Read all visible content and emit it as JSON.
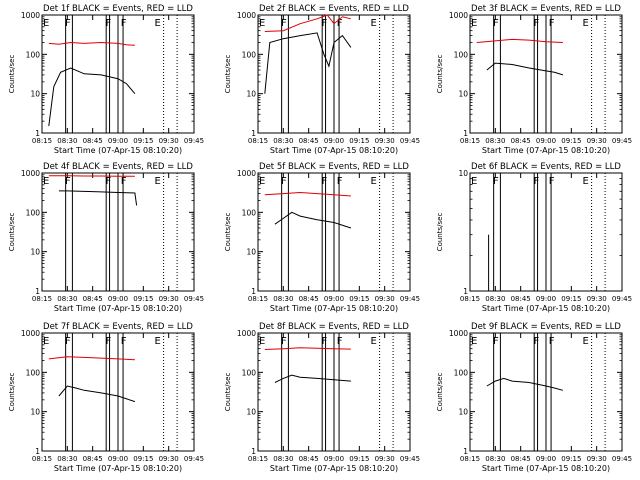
{
  "common": {
    "x_ticks": [
      "08:15",
      "08:30",
      "08:45",
      "09:00",
      "09:15",
      "09:30",
      "09:45"
    ],
    "xlabel": "Start Time (07-Apr-15 08:10:20)",
    "ylabel": "Counts/sec",
    "flare_markers": [
      {
        "label": "E",
        "time": "08:15"
      },
      {
        "label": "F",
        "time": "08:28"
      },
      {
        "label": "F",
        "time": "08:52"
      },
      {
        "label": "F",
        "time": "09:01"
      },
      {
        "label": "E",
        "time": "09:21"
      }
    ],
    "solid_vlines": [
      "08:29",
      "08:33",
      "08:53",
      "08:55",
      "09:00",
      "09:03"
    ],
    "dotted_vlines": [
      "09:27",
      "09:35"
    ],
    "colors": {
      "events": "#000000",
      "lld": "#e00000"
    }
  },
  "chart_data": [
    {
      "type": "line",
      "title": "Det 1f BLACK = Events, RED = LLD",
      "yscale": "log",
      "y_ticks": [
        "1",
        "10",
        "100",
        "1000"
      ],
      "ylim": [
        1,
        1000
      ],
      "series": [
        {
          "name": "LLD",
          "color": "#e00000",
          "x": [
            "08:19",
            "08:25",
            "08:32",
            "08:40",
            "08:50",
            "09:00",
            "09:05",
            "09:10"
          ],
          "values": [
            190,
            180,
            200,
            190,
            200,
            190,
            175,
            170
          ]
        },
        {
          "name": "Events",
          "color": "#000000",
          "x": [
            "08:19",
            "08:22",
            "08:26",
            "08:32",
            "08:40",
            "08:50",
            "09:00",
            "09:05",
            "09:10"
          ],
          "values": [
            1.5,
            15,
            35,
            45,
            32,
            30,
            24,
            18,
            10
          ]
        }
      ]
    },
    {
      "type": "line",
      "title": "Det 2f BLACK = Events, RED = LLD",
      "yscale": "log",
      "y_ticks": [
        "1",
        "10",
        "100",
        "1000"
      ],
      "ylim": [
        1,
        1000
      ],
      "series": [
        {
          "name": "LLD",
          "color": "#e00000",
          "x": [
            "08:19",
            "08:30",
            "08:40",
            "08:50",
            "08:56",
            "09:00",
            "09:05",
            "09:10"
          ],
          "values": [
            380,
            400,
            600,
            800,
            1000,
            600,
            900,
            800
          ]
        },
        {
          "name": "Events",
          "color": "#000000",
          "x": [
            "08:19",
            "08:22",
            "08:30",
            "08:40",
            "08:50",
            "08:54",
            "08:57",
            "09:00",
            "09:05",
            "09:10"
          ],
          "values": [
            10,
            200,
            250,
            300,
            350,
            100,
            50,
            200,
            300,
            150
          ]
        }
      ]
    },
    {
      "type": "line",
      "title": "Det 3f BLACK = Events, RED = LLD",
      "yscale": "log",
      "y_ticks": [
        "1",
        "10",
        "100",
        "1000"
      ],
      "ylim": [
        1,
        1000
      ],
      "series": [
        {
          "name": "LLD",
          "color": "#e00000",
          "x": [
            "08:19",
            "08:30",
            "08:40",
            "08:50",
            "09:00",
            "09:10"
          ],
          "values": [
            200,
            220,
            240,
            230,
            210,
            200
          ]
        },
        {
          "name": "Events",
          "color": "#000000",
          "x": [
            "08:25",
            "08:30",
            "08:40",
            "08:50",
            "09:00",
            "09:05",
            "09:10"
          ],
          "values": [
            40,
            60,
            55,
            45,
            38,
            35,
            30
          ]
        }
      ]
    },
    {
      "type": "line",
      "title": "Det 4f BLACK = Events, RED = LLD",
      "yscale": "log",
      "y_ticks": [
        "1",
        "10",
        "100",
        "1000"
      ],
      "ylim": [
        1,
        1000
      ],
      "series": [
        {
          "name": "LLD",
          "color": "#e00000",
          "x": [
            "08:19",
            "08:30",
            "08:40",
            "08:50",
            "09:00",
            "09:10"
          ],
          "values": [
            850,
            850,
            840,
            840,
            830,
            830
          ]
        },
        {
          "name": "Events",
          "color": "#000000",
          "x": [
            "08:25",
            "08:30",
            "08:40",
            "08:50",
            "09:00",
            "09:10",
            "09:11"
          ],
          "values": [
            350,
            350,
            340,
            330,
            320,
            310,
            150
          ]
        }
      ]
    },
    {
      "type": "line",
      "title": "Det 5f BLACK = Events, RED = LLD",
      "yscale": "log",
      "y_ticks": [
        "1",
        "10",
        "100",
        "1000"
      ],
      "ylim": [
        1,
        1000
      ],
      "series": [
        {
          "name": "LLD",
          "color": "#e00000",
          "x": [
            "08:19",
            "08:30",
            "08:40",
            "08:50",
            "09:00",
            "09:10"
          ],
          "values": [
            280,
            300,
            320,
            300,
            280,
            260
          ]
        },
        {
          "name": "Events",
          "color": "#000000",
          "x": [
            "08:25",
            "08:30",
            "08:35",
            "08:40",
            "08:50",
            "09:00",
            "09:10"
          ],
          "values": [
            50,
            70,
            100,
            80,
            65,
            55,
            40
          ]
        }
      ]
    },
    {
      "type": "line",
      "title": "Det 6f BLACK = Events, RED = LLD",
      "yscale": "log",
      "y_ticks": [
        "1",
        "10"
      ],
      "ylim": [
        1,
        10
      ],
      "series": [
        {
          "name": "Events",
          "color": "#000000",
          "x": [
            "08:26",
            "08:26"
          ],
          "values": [
            1,
            3
          ]
        }
      ]
    },
    {
      "type": "line",
      "title": "Det 7f BLACK = Events, RED = LLD",
      "yscale": "log",
      "y_ticks": [
        "1",
        "10",
        "100",
        "1000"
      ],
      "ylim": [
        1,
        1000
      ],
      "series": [
        {
          "name": "LLD",
          "color": "#e00000",
          "x": [
            "08:19",
            "08:30",
            "08:40",
            "08:50",
            "09:00",
            "09:10"
          ],
          "values": [
            220,
            250,
            240,
            230,
            220,
            210
          ]
        },
        {
          "name": "Events",
          "color": "#000000",
          "x": [
            "08:25",
            "08:30",
            "08:35",
            "08:40",
            "08:50",
            "09:00",
            "09:10"
          ],
          "values": [
            25,
            45,
            40,
            35,
            30,
            25,
            18
          ]
        }
      ]
    },
    {
      "type": "line",
      "title": "Det 8f BLACK = Events, RED = LLD",
      "yscale": "log",
      "y_ticks": [
        "1",
        "10",
        "100",
        "1000"
      ],
      "ylim": [
        1,
        1000
      ],
      "series": [
        {
          "name": "LLD",
          "color": "#e00000",
          "x": [
            "08:19",
            "08:30",
            "08:40",
            "08:50",
            "09:00",
            "09:10"
          ],
          "values": [
            380,
            400,
            420,
            410,
            400,
            390
          ]
        },
        {
          "name": "Events",
          "color": "#000000",
          "x": [
            "08:25",
            "08:30",
            "08:35",
            "08:40",
            "08:50",
            "09:00",
            "09:10"
          ],
          "values": [
            55,
            70,
            85,
            75,
            70,
            65,
            60
          ]
        }
      ]
    },
    {
      "type": "line",
      "title": "Det 9f BLACK = Events, RED = LLD",
      "yscale": "log",
      "y_ticks": [
        "1",
        "10",
        "100",
        "1000"
      ],
      "ylim": [
        1,
        1000
      ],
      "series": [
        {
          "name": "Events",
          "color": "#000000",
          "x": [
            "08:25",
            "08:30",
            "08:35",
            "08:40",
            "08:50",
            "09:00",
            "09:05",
            "09:10"
          ],
          "values": [
            45,
            60,
            70,
            60,
            55,
            45,
            40,
            35
          ]
        }
      ]
    }
  ]
}
